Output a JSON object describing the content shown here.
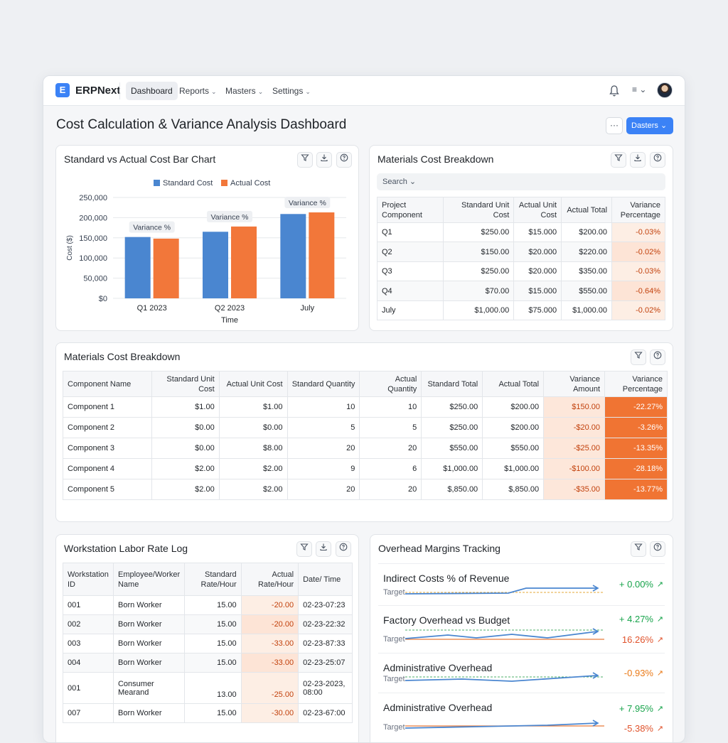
{
  "app": {
    "brand": "ERPNext",
    "logo_letter": "E",
    "nav": [
      {
        "label": "Dashboard",
        "active": true
      },
      {
        "label": "Reports",
        "caret": "⌄"
      },
      {
        "label": "Masters",
        "caret": "⌄"
      },
      {
        "label": "Settings",
        "caret": "⌄"
      }
    ],
    "menu_icon": "≡ ⌄"
  },
  "page": {
    "title": "Cost Calculation & Variance Analysis Dashboard",
    "more_label": "···",
    "primary_button": "Dasters ⌄"
  },
  "bar_card": {
    "title": "Standard vs Actual Cost Bar Chart"
  },
  "chart_data": {
    "type": "bar",
    "title": "Standard vs Actual Cost Bar Chart",
    "categories": [
      "Q1 2023",
      "Q2 2023",
      "July"
    ],
    "series": [
      {
        "name": "Standard Cost",
        "values": [
          152000,
          165000,
          209000
        ],
        "color": "#4a86d0"
      },
      {
        "name": "Actual Cost",
        "values": [
          148000,
          178000,
          213000
        ],
        "color": "#f2773a"
      }
    ],
    "annotations": [
      "Variance %",
      "Variance %",
      "Variance %"
    ],
    "xlabel": "Time",
    "ylabel": "Cost ($)",
    "ylim": [
      0,
      250000
    ],
    "yticks": [
      "$0",
      "50,000",
      "100,000",
      "150,000",
      "200,000",
      "250,000"
    ],
    "grid": true,
    "legend": "top"
  },
  "mat_card_small": {
    "title": "Materials Cost Breakdown",
    "search_placeholder": "Search ⌄",
    "headers": [
      "Project Component",
      "Standard Unit Cost",
      "Actual Unit Cost",
      "Actual Total",
      "Variance Percentage"
    ],
    "rows": [
      [
        "Q1",
        "$250.00",
        "$15.000",
        "$200.00",
        "-0.03%"
      ],
      [
        "Q2",
        "$150.00",
        "$20.000",
        "$220.00",
        "-0.02%"
      ],
      [
        "Q3",
        "$250.00",
        "$20.000",
        "$350.00",
        "-0.03%"
      ],
      [
        "Q4",
        "$70.00",
        "$15.000",
        "$550.00",
        "-0.64%"
      ],
      [
        "July",
        "$1,000.00",
        "$75.000",
        "$1,000.00",
        "-0.02%"
      ]
    ]
  },
  "mat_card_large": {
    "title": "Materials Cost Breakdown",
    "headers": [
      "Component Name",
      "Standard Unit Cost",
      "Actual Unit Cost",
      "Standard Quantity",
      "Actual Quantity",
      "Standard Total",
      "Actual Total",
      "Variance Amount",
      "Variance Percentage"
    ],
    "rows": [
      [
        "Component 1",
        "$1.00",
        "$1.00",
        "10",
        "10",
        "$250.00",
        "$200.00",
        "$150.00",
        "-22.27%"
      ],
      [
        "Component 2",
        "$0.00",
        "$0.00",
        "5",
        "5",
        "$250.00",
        "$200.00",
        "-$20.00",
        "-3.26%"
      ],
      [
        "Component 3",
        "$0.00",
        "$8.00",
        "20",
        "20",
        "$550.00",
        "$550.00",
        "-$25.00",
        "-13.35%"
      ],
      [
        "Component 4",
        "$2.00",
        "$2.00",
        "9",
        "6",
        "$1,000.00",
        "$1,000.00",
        "-$100.00",
        "-28.18%"
      ],
      [
        "Component 5",
        "$2.00",
        "$2.00",
        "20",
        "20",
        "$,850.00",
        "$,850.00",
        "-$35.00",
        "-13.77%"
      ]
    ]
  },
  "labor_card": {
    "title": "Workstation Labor Rate Log",
    "headers": [
      "Workstation ID",
      "Employee/Worker Name",
      "Standard Rate/Hour",
      "Actual Rate/Hour",
      "Date/ Time"
    ],
    "rows": [
      [
        "001",
        "Born Worker",
        "15.00",
        "-20.00",
        "02-23-07:23"
      ],
      [
        "002",
        "Born Worker",
        "15.00",
        "-20.00",
        "02-23-22:32"
      ],
      [
        "003",
        "Born Worker",
        "15.00",
        "-33.00",
        "02-23-87:33"
      ],
      [
        "004",
        "Born Worker",
        "15.00",
        "-33.00",
        "02-23-25:07"
      ],
      [
        "001",
        "Consumer Mearand",
        "13.00",
        "-25.00",
        "02-23-2023, 08:00"
      ],
      [
        "007",
        "Born Worker",
        "15.00",
        "-30.00",
        "02-23-67:00"
      ]
    ]
  },
  "overhead_card": {
    "title": "Overhead Margins Tracking",
    "items": [
      {
        "name": "Indirect Costs % of Revenue",
        "target": "Target",
        "value": "+ 0.00%",
        "value2": ""
      },
      {
        "name": "Factory Overhead vs Budget",
        "target": "Target",
        "value": "+ 4.27%",
        "value2": "16.26%"
      },
      {
        "name": "Administrative Overhead",
        "target": "Target",
        "value": "-0.93%",
        "value2": ""
      },
      {
        "name": "Administrative Overhead",
        "target": "Target",
        "value": "+ 7.95%",
        "value2": "-5.38%"
      }
    ]
  },
  "icons": {
    "filter": "filter-icon",
    "download": "download-icon",
    "help": "help-icon",
    "bell": "bell-icon",
    "trend": "trend-up-icon"
  },
  "colors": {
    "accent": "#3b82f6",
    "standard": "#4a86d0",
    "actual": "#f2773a",
    "positive": "#16a34a",
    "warning": "#ea7a18"
  }
}
